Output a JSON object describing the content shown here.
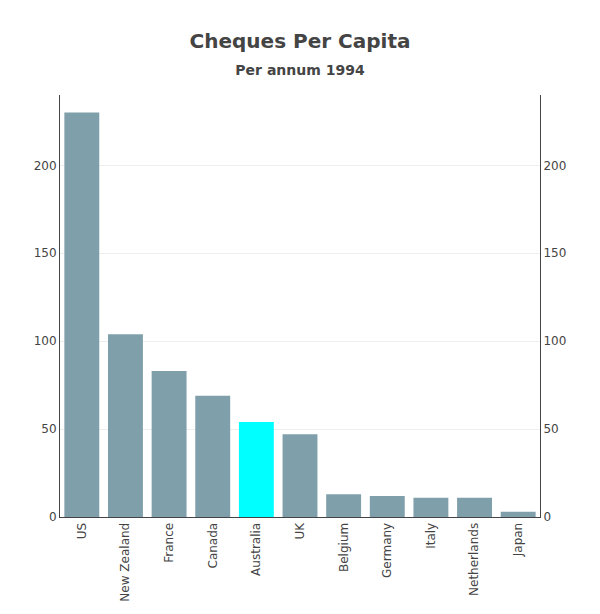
{
  "chart_data": {
    "type": "bar",
    "title": "Cheques Per Capita",
    "subtitle": "Per annum 1994",
    "categories": [
      "US",
      "New Zealand",
      "France",
      "Canada",
      "Australia",
      "UK",
      "Belgium",
      "Germany",
      "Italy",
      "Netherlands",
      "Japan"
    ],
    "values": [
      230,
      104,
      83,
      69,
      54,
      47,
      13,
      12,
      11,
      11,
      3
    ],
    "colors": [
      "#7f9faa",
      "#7f9faa",
      "#7f9faa",
      "#7f9faa",
      "#00ffff",
      "#7f9faa",
      "#7f9faa",
      "#7f9faa",
      "#7f9faa",
      "#7f9faa",
      "#7f9faa"
    ],
    "ylim": [
      0,
      240
    ],
    "yticks": [
      0,
      50,
      100,
      150,
      200
    ],
    "y2lim": [
      0,
      240
    ],
    "y2ticks": [
      0,
      50,
      100,
      150,
      200
    ],
    "grid": true
  }
}
